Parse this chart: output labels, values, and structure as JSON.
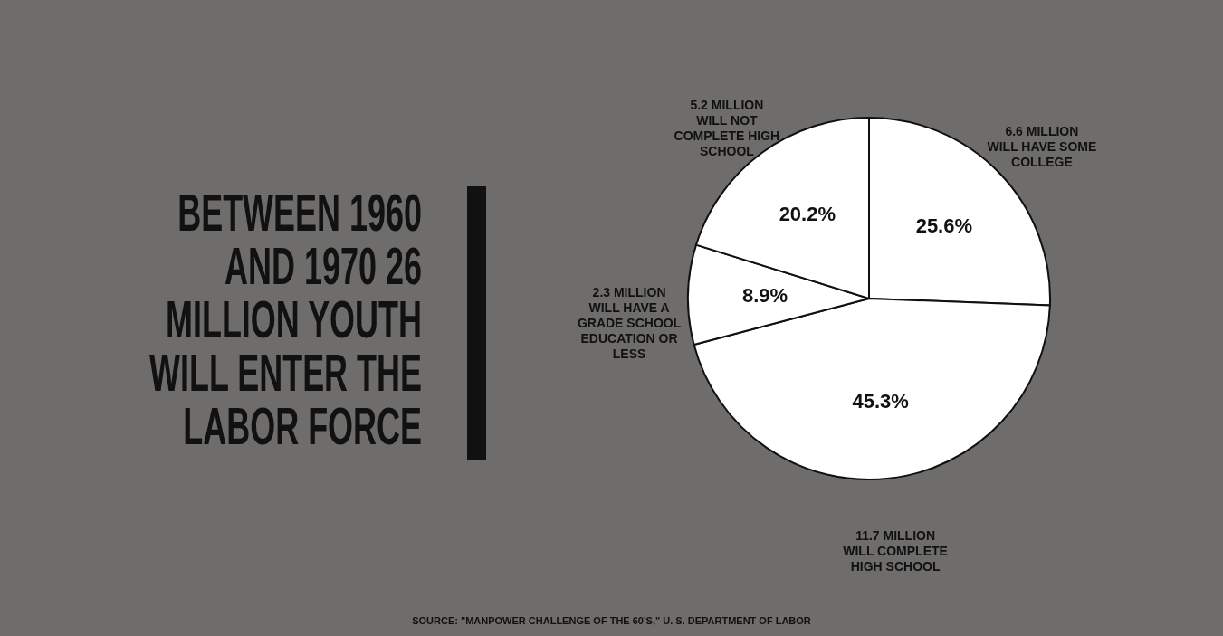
{
  "chart_data": {
    "type": "pie",
    "title": "BETWEEN 1960 AND 1970 26 MILLION YOUTH WILL ENTER THE LABOR FORCE",
    "categories": [
      "6.6 MILLION WILL HAVE SOME COLLEGE",
      "11.7 MILLION WILL COMPLETE HIGH SCHOOL",
      "2.3 MILLION WILL HAVE A GRADE SCHOOL EDUCATION OR LESS",
      "5.2 MILLION WILL NOT COMPLETE HIGH SCHOOL"
    ],
    "values": [
      25.6,
      45.3,
      8.9,
      20.2
    ],
    "value_labels": [
      "25.6%",
      "45.3%",
      "8.9%",
      "20.2%"
    ],
    "colors": [
      "#ffffff",
      "#ffffff",
      "#ffffff",
      "#ffffff"
    ],
    "annotations": [
      "SOURCE: \"MANPOWER CHALLENGE OF THE 60'S,\" U. S. DEPARTMENT OF LABOR"
    ]
  }
}
